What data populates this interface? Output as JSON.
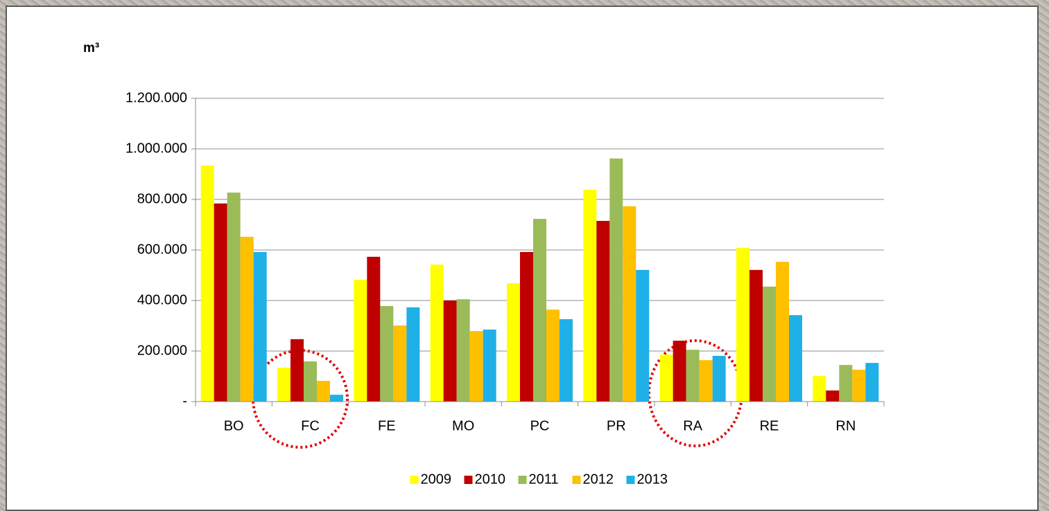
{
  "chart_data": {
    "type": "bar",
    "y_axis_label": "m³",
    "categories": [
      "BO",
      "FC",
      "FE",
      "MO",
      "PC",
      "PR",
      "RA",
      "RE",
      "RN"
    ],
    "series": [
      {
        "name": "2009",
        "color": "#ffff00",
        "values": [
          934000,
          134000,
          482000,
          542000,
          468000,
          838000,
          186000,
          608000,
          101000
        ]
      },
      {
        "name": "2010",
        "color": "#c00000",
        "values": [
          784000,
          247000,
          573000,
          400000,
          592000,
          715000,
          241000,
          521000,
          44000
        ]
      },
      {
        "name": "2011",
        "color": "#9bbb59",
        "values": [
          827000,
          159000,
          378000,
          405000,
          723000,
          962000,
          205000,
          455000,
          145000
        ]
      },
      {
        "name": "2012",
        "color": "#ffc000",
        "values": [
          652000,
          82000,
          301000,
          279000,
          364000,
          773000,
          164000,
          553000,
          126000
        ]
      },
      {
        "name": "2013",
        "color": "#1fb0e8",
        "values": [
          592000,
          27000,
          373000,
          285000,
          326000,
          521000,
          181000,
          342000,
          153000
        ]
      }
    ],
    "ylim": [
      0,
      1200000
    ],
    "yticks": [
      {
        "value": 0,
        "label": "-"
      },
      {
        "value": 200000,
        "label": "200.000"
      },
      {
        "value": 400000,
        "label": "400.000"
      },
      {
        "value": 600000,
        "label": "600.000"
      },
      {
        "value": 800000,
        "label": "800.000"
      },
      {
        "value": 1000000,
        "label": "1.000.000"
      },
      {
        "value": 1200000,
        "label": "1.200.000"
      }
    ],
    "grid": true,
    "legend": "bottom"
  }
}
